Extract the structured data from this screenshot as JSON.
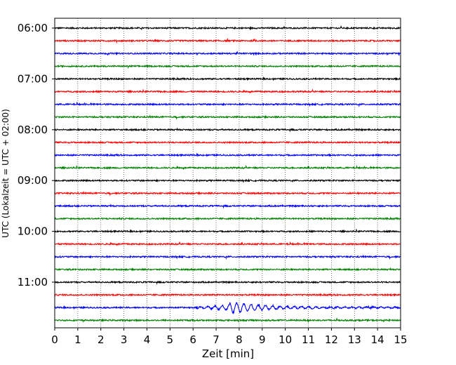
{
  "chart_data": {
    "type": "line",
    "xlabel": "Zeit  [min]",
    "ylabel": "UTC (Lokalzeit = UTC + 02:00)",
    "xlim": [
      0,
      15
    ],
    "x_ticks": [
      "0",
      "1",
      "2",
      "3",
      "4",
      "5",
      "6",
      "7",
      "8",
      "9",
      "10",
      "11",
      "12",
      "13",
      "14",
      "15"
    ],
    "grid": "vertical dotted",
    "y_tick_labels": [
      "06:00",
      "07:00",
      "08:00",
      "09:00",
      "10:00",
      "11:00"
    ],
    "trace_interval_minutes": 15,
    "trace_count": 24,
    "trace_colors": [
      "#000000",
      "#ff0000",
      "#0000ff",
      "#008000"
    ],
    "noise_level": 0.12,
    "event": {
      "trace_start": "11:30",
      "onset_min": 6.2,
      "peak_min": 7.6,
      "end_min": 15.0,
      "peak_amplitude": 1.0
    }
  }
}
